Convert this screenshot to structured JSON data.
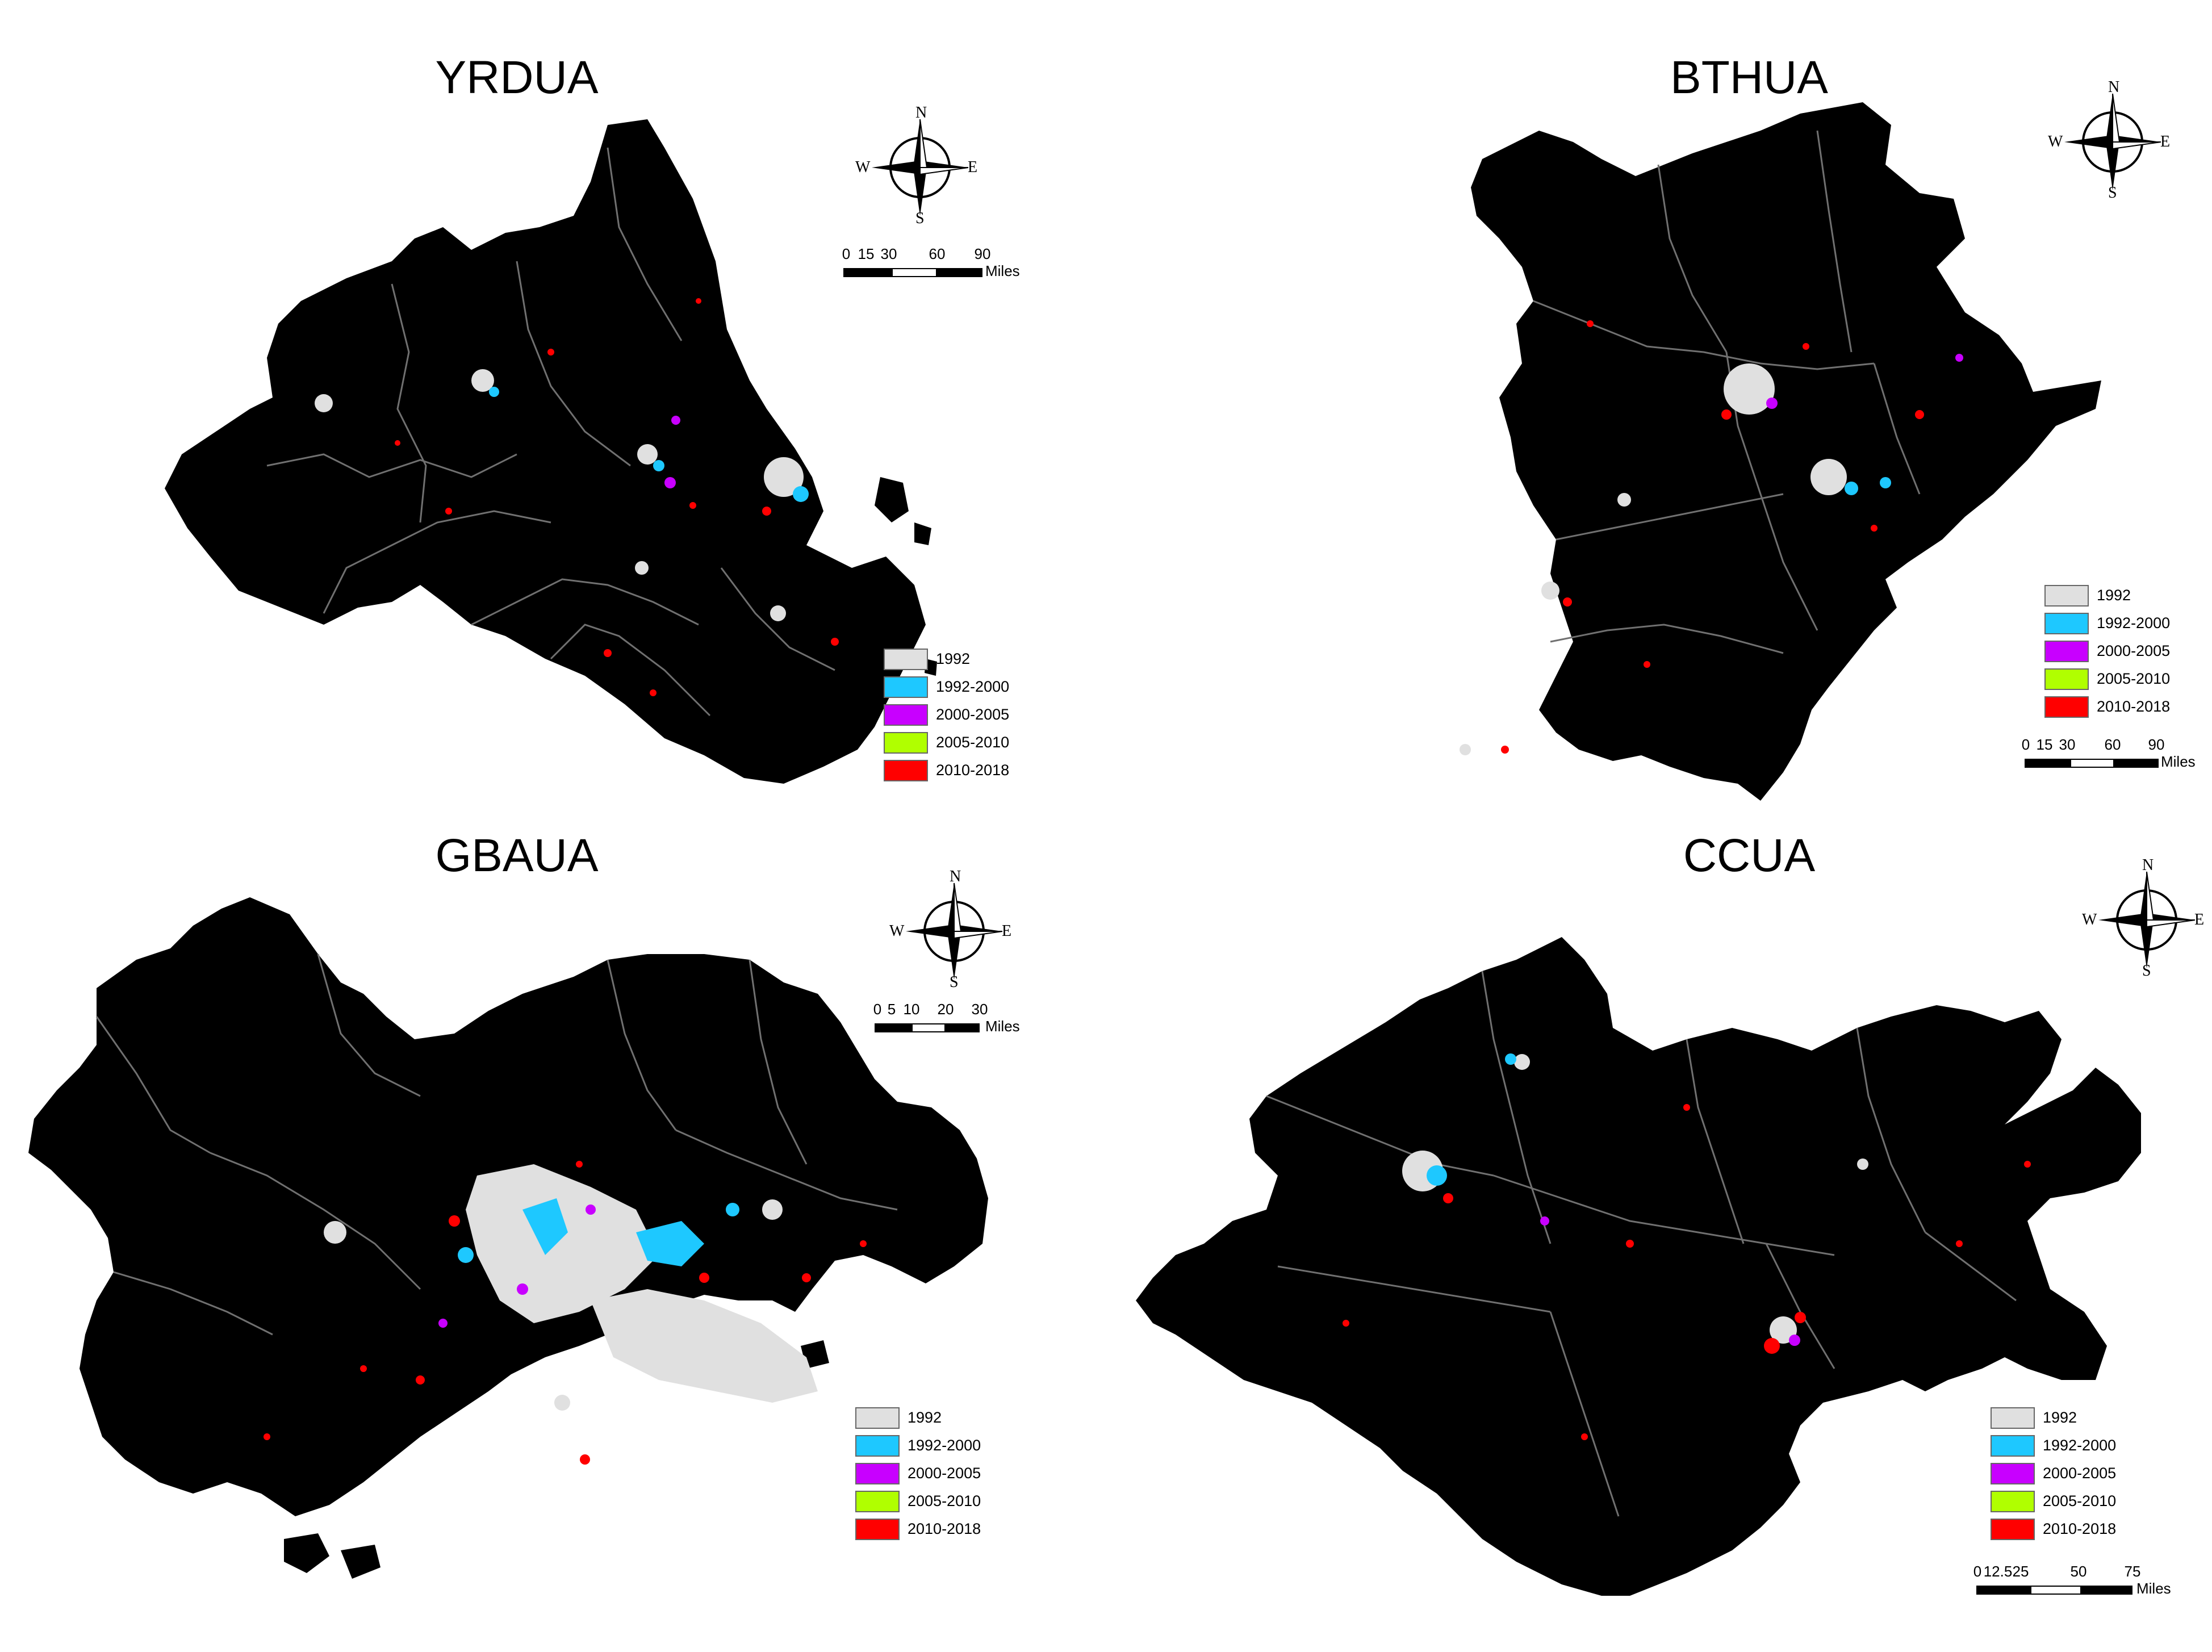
{
  "legend_colors": [
    "#e0e0e0",
    "#1ec8ff",
    "#c800ff",
    "#b0ff00",
    "#ff0000"
  ],
  "map_color": "#000000",
  "boundary_color": "#707070",
  "panels": [
    {
      "title": "YRDUA",
      "legend": [
        "1992",
        "1992-2000",
        "2000-2005",
        "2005-2010",
        "2010-2018"
      ],
      "scale": {
        "ticks": [
          "0",
          "15",
          "30",
          "60",
          "90"
        ],
        "unit": "Miles"
      },
      "compass": {
        "n": "N",
        "s": "S",
        "e": "E",
        "w": "W"
      }
    },
    {
      "title": "BTHUA",
      "legend": [
        "1992",
        "1992-2000",
        "2000-2005",
        "2005-2010",
        "2010-2018"
      ],
      "scale": {
        "ticks": [
          "0",
          "15",
          "30",
          "60",
          "90"
        ],
        "unit": "Miles"
      },
      "compass": {
        "n": "N",
        "s": "S",
        "e": "E",
        "w": "W"
      }
    },
    {
      "title": "GBAUA",
      "legend": [
        "1992",
        "1992-2000",
        "2000-2005",
        "2005-2010",
        "2010-2018"
      ],
      "scale": {
        "ticks": [
          "0",
          "5",
          "10",
          "20",
          "30"
        ],
        "unit": "Miles"
      },
      "compass": {
        "n": "N",
        "s": "S",
        "e": "E",
        "w": "W"
      }
    },
    {
      "title": "CCUA",
      "legend": [
        "1992",
        "1992-2000",
        "2000-2005",
        "2005-2010",
        "2010-2018"
      ],
      "scale": {
        "ticks": [
          "0",
          "12.5",
          "25",
          "50",
          "75"
        ],
        "unit": "Miles"
      },
      "compass": {
        "n": "N",
        "s": "S",
        "e": "E",
        "w": "W"
      }
    }
  ]
}
